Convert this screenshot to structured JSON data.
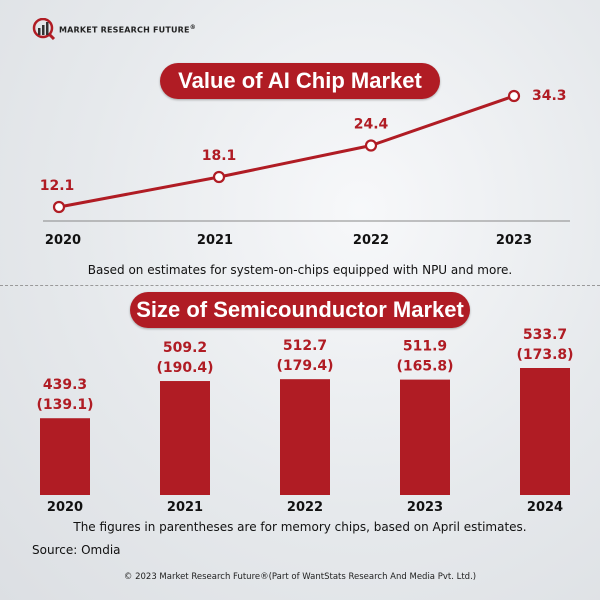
{
  "brand": {
    "name": "MARKET RESEARCH FUTURE",
    "reg": "®"
  },
  "colors": {
    "accent": "#b01c24",
    "text": "#111111"
  },
  "chart_data": [
    {
      "type": "line",
      "title": "Value of AI Chip Market",
      "categories": [
        "2020",
        "2021",
        "2022",
        "2023"
      ],
      "values": [
        12.1,
        18.1,
        24.4,
        34.3
      ],
      "labels": [
        "12.1",
        "18.1",
        "24.4",
        "34.3"
      ],
      "note": "Based on estimates for system-on-chips equipped with NPU and more.",
      "ylim": [
        0,
        40
      ]
    },
    {
      "type": "bar",
      "title": "Size of Semicounductor Market",
      "categories": [
        "2020",
        "2021",
        "2022",
        "2023",
        "2024"
      ],
      "series": [
        {
          "name": "Semiconductor market",
          "values": [
            439.3,
            509.2,
            512.7,
            511.9,
            533.7
          ]
        },
        {
          "name": "Memory chips",
          "values": [
            139.1,
            190.4,
            179.4,
            165.8,
            173.8
          ]
        }
      ],
      "labels": [
        "439.3",
        "509.2",
        "512.7",
        "511.9",
        "533.7"
      ],
      "sublabels": [
        "(139.1)",
        "(190.4)",
        "(179.4)",
        "(165.8)",
        "(173.8)"
      ],
      "note": "The figures in parentheses are for memory chips, based on April estimates.",
      "ylim": [
        295,
        540
      ]
    }
  ],
  "source": "Source: Omdia",
  "footer": "© 2023 Market Research Future®(Part of WantStats Research And Media Pvt. Ltd.)"
}
